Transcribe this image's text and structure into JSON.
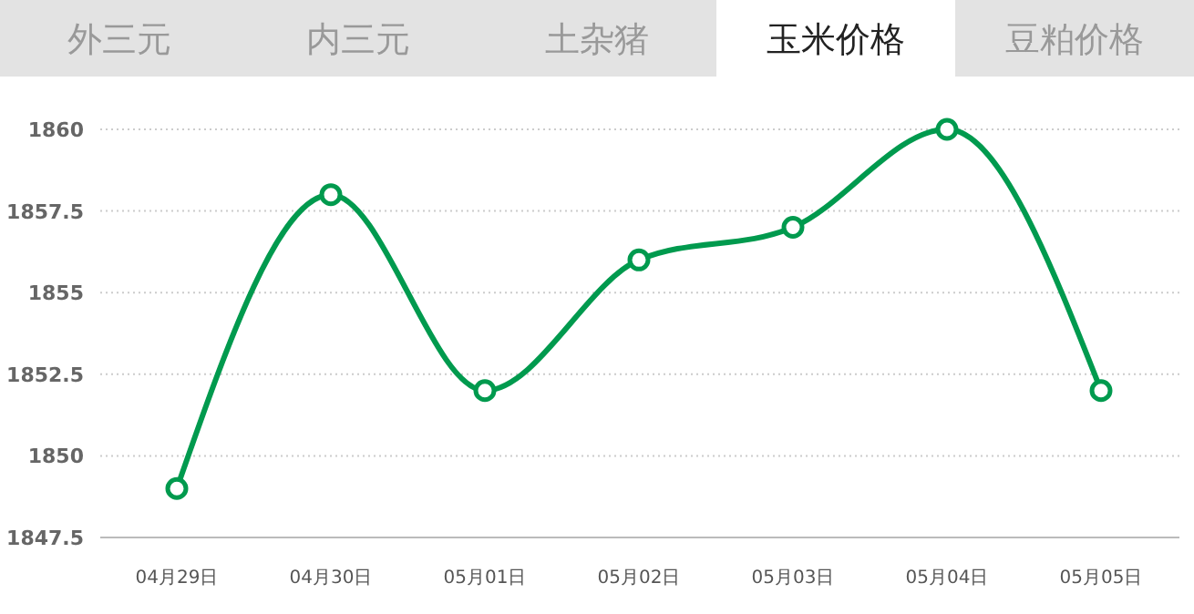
{
  "chart_data": {
    "type": "line",
    "annotations": [
      "外三元",
      "内三元",
      "土杂猪",
      "玉米价格",
      "豆粕价格"
    ],
    "categories": [
      "04月29日",
      "04月30日",
      "05月01日",
      "05月02日",
      "05月03日",
      "05月04日",
      "05月05日"
    ],
    "series": [
      {
        "color": "#009a4e",
        "values": [
          1849,
          1858,
          1852,
          1856,
          1857,
          1860,
          1852
        ]
      }
    ],
    "ylim": [
      1847.5,
      1860
    ],
    "yticks": [
      1847.5,
      1850,
      1852.5,
      1855,
      1857.5,
      1860
    ],
    "grid": "y",
    "marker": "circle",
    "line_style": "solid"
  }
}
